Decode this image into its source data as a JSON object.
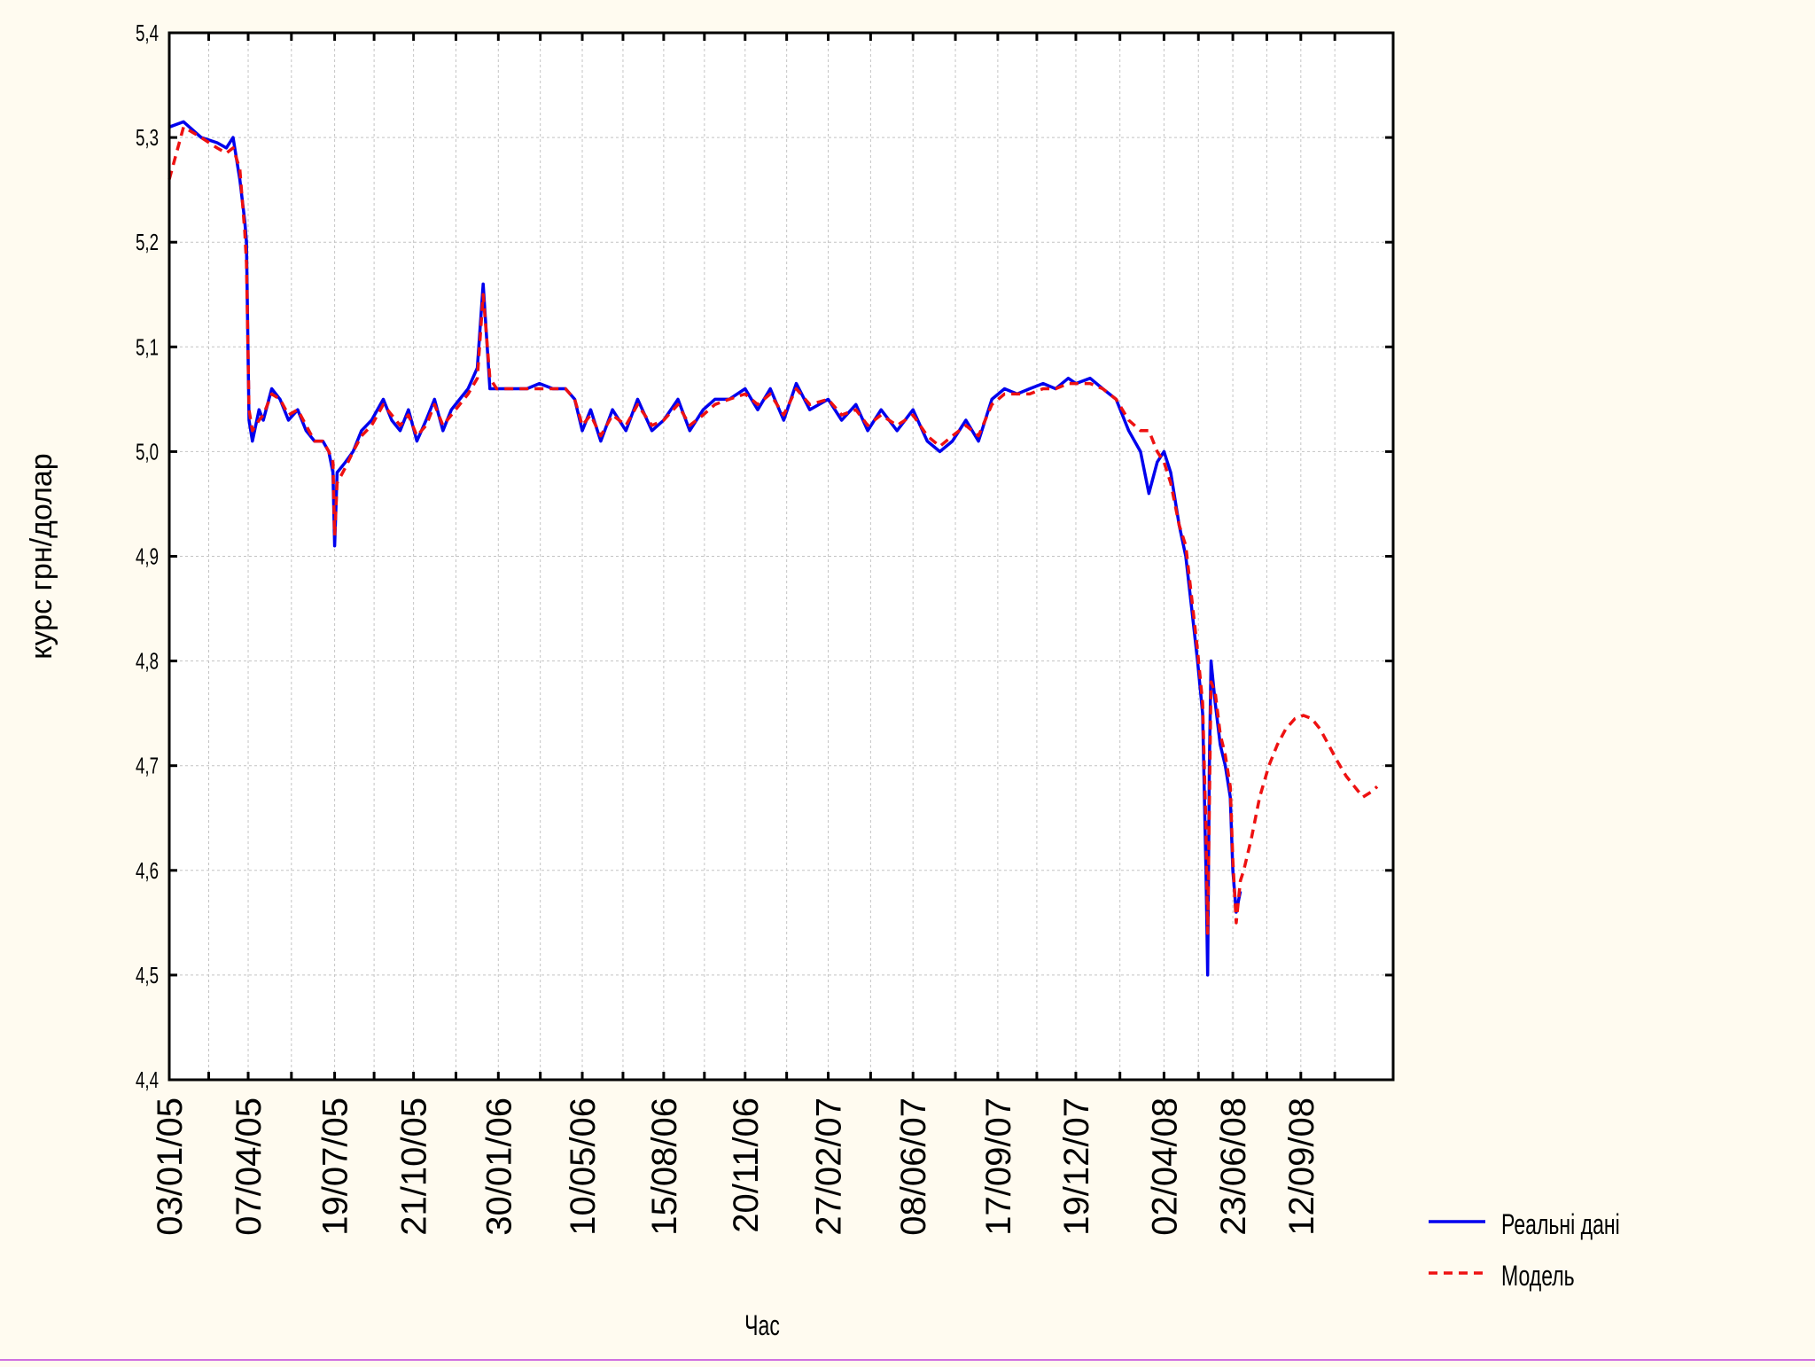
{
  "chart_data": {
    "type": "line",
    "title": "",
    "xlabel": "Час",
    "ylabel": "курс грн/долар",
    "ylim": [
      4.4,
      5.4
    ],
    "yticks": [
      "4,4",
      "4,5",
      "4,6",
      "4,7",
      "4,8",
      "4,9",
      "5,0",
      "5,1",
      "5,2",
      "5,3",
      "5,4"
    ],
    "xlim": [
      "2005-01-03",
      "2008-12-31"
    ],
    "xtick_labels": [
      "03/01/05",
      "07/04/05",
      "19/07/05",
      "21/10/05",
      "30/01/06",
      "10/05/06",
      "15/08/06",
      "20/11/06",
      "27/02/07",
      "08/06/07",
      "17/09/07",
      "19/12/07",
      "02/04/08",
      "23/06/08",
      "12/09/08"
    ],
    "xtick_dates": [
      "2005-01-03",
      "2005-04-07",
      "2005-07-19",
      "2005-10-21",
      "2006-01-30",
      "2006-05-10",
      "2006-08-15",
      "2006-11-20",
      "2007-02-27",
      "2007-06-08",
      "2007-09-17",
      "2007-12-19",
      "2008-04-02",
      "2008-06-23",
      "2008-09-12"
    ],
    "grid": true,
    "legend_position": "bottom-right",
    "colors": {
      "real": "#0000ee",
      "model": "#ee1111"
    },
    "series": [
      {
        "name": "Реальні дані",
        "style": "solid",
        "x": [
          "2005-01-03",
          "2005-01-20",
          "2005-02-10",
          "2005-03-01",
          "2005-03-12",
          "2005-03-20",
          "2005-03-28",
          "2005-04-03",
          "2005-04-05",
          "2005-04-08",
          "2005-04-12",
          "2005-04-20",
          "2005-04-25",
          "2005-05-05",
          "2005-05-15",
          "2005-05-25",
          "2005-06-05",
          "2005-06-15",
          "2005-06-25",
          "2005-07-05",
          "2005-07-12",
          "2005-07-17",
          "2005-07-19",
          "2005-07-22",
          "2005-08-01",
          "2005-08-10",
          "2005-08-20",
          "2005-09-01",
          "2005-09-15",
          "2005-09-25",
          "2005-10-05",
          "2005-10-15",
          "2005-10-25",
          "2005-11-05",
          "2005-11-15",
          "2005-11-25",
          "2005-12-05",
          "2005-12-15",
          "2005-12-25",
          "2006-01-05",
          "2006-01-12",
          "2006-01-20",
          "2006-01-28",
          "2006-02-05",
          "2006-02-20",
          "2006-03-05",
          "2006-03-20",
          "2006-04-05",
          "2006-04-20",
          "2006-05-01",
          "2006-05-10",
          "2006-05-20",
          "2006-06-01",
          "2006-06-15",
          "2006-07-01",
          "2006-07-15",
          "2006-08-01",
          "2006-08-15",
          "2006-09-01",
          "2006-09-15",
          "2006-10-01",
          "2006-10-15",
          "2006-11-01",
          "2006-11-20",
          "2006-12-05",
          "2006-12-20",
          "2007-01-05",
          "2007-01-20",
          "2007-02-05",
          "2007-02-27",
          "2007-03-15",
          "2007-04-01",
          "2007-04-15",
          "2007-05-01",
          "2007-05-20",
          "2007-06-08",
          "2007-06-25",
          "2007-07-10",
          "2007-07-25",
          "2007-08-10",
          "2007-08-25",
          "2007-09-10",
          "2007-09-25",
          "2007-10-10",
          "2007-10-25",
          "2007-11-10",
          "2007-11-25",
          "2007-12-10",
          "2007-12-19",
          "2008-01-05",
          "2008-01-20",
          "2008-02-05",
          "2008-02-20",
          "2008-03-05",
          "2008-03-15",
          "2008-03-25",
          "2008-04-02",
          "2008-04-10",
          "2008-04-20",
          "2008-04-28",
          "2008-05-05",
          "2008-05-12",
          "2008-05-18",
          "2008-05-22",
          "2008-05-24",
          "2008-05-26",
          "2008-05-28",
          "2008-06-02",
          "2008-06-08",
          "2008-06-14",
          "2008-06-20",
          "2008-06-23",
          "2008-06-27",
          "2008-07-02"
        ],
        "y": [
          5.31,
          5.315,
          5.3,
          5.295,
          5.29,
          5.3,
          5.26,
          5.22,
          5.2,
          5.03,
          5.01,
          5.04,
          5.03,
          5.06,
          5.05,
          5.03,
          5.04,
          5.02,
          5.01,
          5.01,
          5.0,
          4.98,
          4.91,
          4.98,
          4.99,
          5.0,
          5.02,
          5.03,
          5.05,
          5.03,
          5.02,
          5.04,
          5.01,
          5.03,
          5.05,
          5.02,
          5.04,
          5.05,
          5.06,
          5.08,
          5.16,
          5.06,
          5.06,
          5.06,
          5.06,
          5.06,
          5.065,
          5.06,
          5.06,
          5.05,
          5.02,
          5.04,
          5.01,
          5.04,
          5.02,
          5.05,
          5.02,
          5.03,
          5.05,
          5.02,
          5.04,
          5.05,
          5.05,
          5.06,
          5.04,
          5.06,
          5.03,
          5.065,
          5.04,
          5.05,
          5.03,
          5.045,
          5.02,
          5.04,
          5.02,
          5.04,
          5.01,
          5.0,
          5.01,
          5.03,
          5.01,
          5.05,
          5.06,
          5.055,
          5.06,
          5.065,
          5.06,
          5.07,
          5.065,
          5.07,
          5.06,
          5.05,
          5.02,
          5.0,
          4.96,
          4.99,
          5.0,
          4.98,
          4.93,
          4.9,
          4.85,
          4.8,
          4.75,
          4.6,
          4.5,
          4.7,
          4.8,
          4.76,
          4.72,
          4.7,
          4.67,
          4.6,
          4.56,
          4.58
        ]
      },
      {
        "name": "Модель",
        "style": "dashed",
        "x": [
          "2005-01-03",
          "2005-01-20",
          "2005-02-10",
          "2005-03-01",
          "2005-03-12",
          "2005-03-20",
          "2005-03-28",
          "2005-04-03",
          "2005-04-05",
          "2005-04-08",
          "2005-04-12",
          "2005-04-20",
          "2005-04-25",
          "2005-05-05",
          "2005-05-15",
          "2005-05-25",
          "2005-06-05",
          "2005-06-15",
          "2005-06-25",
          "2005-07-05",
          "2005-07-12",
          "2005-07-17",
          "2005-07-19",
          "2005-07-22",
          "2005-08-01",
          "2005-08-10",
          "2005-08-20",
          "2005-09-01",
          "2005-09-15",
          "2005-09-25",
          "2005-10-05",
          "2005-10-15",
          "2005-10-25",
          "2005-11-05",
          "2005-11-15",
          "2005-11-25",
          "2005-12-05",
          "2005-12-15",
          "2005-12-25",
          "2006-01-05",
          "2006-01-12",
          "2006-01-20",
          "2006-01-28",
          "2006-02-05",
          "2006-02-20",
          "2006-03-05",
          "2006-03-20",
          "2006-04-05",
          "2006-04-20",
          "2006-05-01",
          "2006-05-10",
          "2006-05-20",
          "2006-06-01",
          "2006-06-15",
          "2006-07-01",
          "2006-07-15",
          "2006-08-01",
          "2006-08-15",
          "2006-09-01",
          "2006-09-15",
          "2006-10-01",
          "2006-10-15",
          "2006-11-01",
          "2006-11-20",
          "2006-12-05",
          "2006-12-20",
          "2007-01-05",
          "2007-01-20",
          "2007-02-05",
          "2007-02-27",
          "2007-03-15",
          "2007-04-01",
          "2007-04-15",
          "2007-05-01",
          "2007-05-20",
          "2007-06-08",
          "2007-06-25",
          "2007-07-10",
          "2007-07-25",
          "2007-08-10",
          "2007-08-25",
          "2007-09-10",
          "2007-09-25",
          "2007-10-10",
          "2007-10-25",
          "2007-11-10",
          "2007-11-25",
          "2007-12-10",
          "2007-12-19",
          "2008-01-05",
          "2008-01-20",
          "2008-02-05",
          "2008-02-20",
          "2008-03-05",
          "2008-03-15",
          "2008-03-25",
          "2008-04-02",
          "2008-04-10",
          "2008-04-20",
          "2008-04-28",
          "2008-05-05",
          "2008-05-12",
          "2008-05-18",
          "2008-05-22",
          "2008-05-24",
          "2008-05-26",
          "2008-05-28",
          "2008-06-02",
          "2008-06-08",
          "2008-06-14",
          "2008-06-20",
          "2008-06-23",
          "2008-06-27",
          "2008-07-02",
          "2008-07-06",
          "2008-07-15",
          "2008-07-25",
          "2008-08-05",
          "2008-08-15",
          "2008-08-25",
          "2008-09-05",
          "2008-09-15",
          "2008-09-25",
          "2008-10-05",
          "2008-10-15",
          "2008-10-25",
          "2008-11-05",
          "2008-11-15",
          "2008-11-25",
          "2008-12-05",
          "2008-12-12"
        ],
        "y": [
          5.26,
          5.31,
          5.3,
          5.29,
          5.285,
          5.29,
          5.27,
          5.21,
          5.18,
          5.04,
          5.02,
          5.03,
          5.035,
          5.055,
          5.05,
          5.035,
          5.04,
          5.025,
          5.01,
          5.01,
          5.0,
          4.99,
          4.92,
          4.97,
          4.985,
          5.0,
          5.015,
          5.025,
          5.045,
          5.035,
          5.025,
          5.035,
          5.015,
          5.025,
          5.045,
          5.025,
          5.035,
          5.045,
          5.055,
          5.07,
          5.15,
          5.07,
          5.06,
          5.06,
          5.06,
          5.06,
          5.06,
          5.06,
          5.06,
          5.05,
          5.025,
          5.035,
          5.015,
          5.035,
          5.025,
          5.045,
          5.025,
          5.03,
          5.045,
          5.025,
          5.035,
          5.045,
          5.05,
          5.055,
          5.045,
          5.055,
          5.035,
          5.06,
          5.045,
          5.05,
          5.035,
          5.04,
          5.025,
          5.035,
          5.025,
          5.035,
          5.015,
          5.005,
          5.015,
          5.025,
          5.015,
          5.045,
          5.055,
          5.055,
          5.055,
          5.06,
          5.06,
          5.065,
          5.065,
          5.065,
          5.06,
          5.05,
          5.03,
          5.02,
          5.02,
          5.0,
          4.99,
          4.97,
          4.93,
          4.91,
          4.86,
          4.81,
          4.76,
          4.64,
          4.54,
          4.66,
          4.78,
          4.77,
          4.73,
          4.71,
          4.68,
          4.61,
          4.55,
          4.59,
          4.6,
          4.63,
          4.67,
          4.7,
          4.72,
          4.735,
          4.745,
          4.748,
          4.745,
          4.735,
          4.72,
          4.705,
          4.69,
          4.68,
          4.67,
          4.675,
          4.68
        ]
      }
    ]
  }
}
